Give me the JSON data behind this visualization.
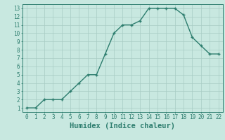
{
  "x": [
    0,
    1,
    2,
    3,
    4,
    5,
    6,
    7,
    8,
    9,
    10,
    11,
    12,
    13,
    14,
    15,
    16,
    17,
    18,
    19,
    20,
    21,
    22
  ],
  "y": [
    1,
    1,
    2,
    2,
    2,
    3,
    4,
    5,
    5,
    7.5,
    10,
    11,
    11,
    11.5,
    13,
    13,
    13,
    13,
    12.2,
    9.5,
    8.5,
    7.5,
    7.5
  ],
  "line_color": "#2d7d6e",
  "marker": "+",
  "bg_color": "#c8e8e0",
  "grid_color": "#a8ccc4",
  "xlabel": "Humidex (Indice chaleur)",
  "xlim": [
    -0.5,
    22.5
  ],
  "ylim": [
    0.5,
    13.5
  ],
  "xticks": [
    0,
    1,
    2,
    3,
    4,
    5,
    6,
    7,
    8,
    9,
    10,
    11,
    12,
    13,
    14,
    15,
    16,
    17,
    18,
    19,
    20,
    21,
    22
  ],
  "yticks": [
    1,
    2,
    3,
    4,
    5,
    6,
    7,
    8,
    9,
    10,
    11,
    12,
    13
  ],
  "tick_fontsize": 5.5,
  "xlabel_fontsize": 7.5,
  "line_width": 1.0,
  "marker_size": 3.5,
  "marker_edge_width": 1.0
}
